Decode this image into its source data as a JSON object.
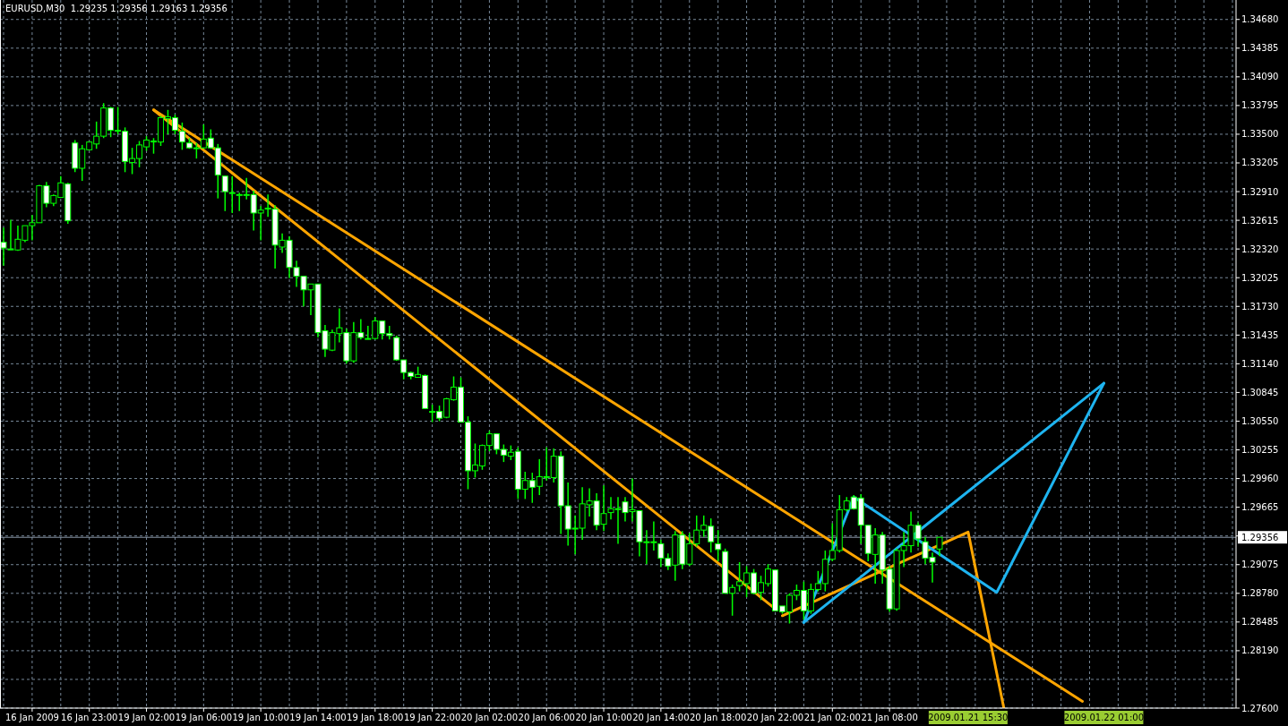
{
  "chart_data": {
    "type": "candlestick",
    "title": "EURUSD,M30  1.29235 1.29356 1.29163 1.29356",
    "color": "#00ff00",
    "grid": true,
    "categories": [
      null,
      null,
      null,
      null,
      "16 Jan 2009",
      null,
      null,
      null,
      null,
      null,
      null,
      null,
      "16 Jan 23:00",
      null,
      null,
      null,
      null,
      null,
      null,
      null,
      "19 Jan 02:00",
      null,
      null,
      null,
      null,
      null,
      null,
      null,
      "19 Jan 06:00",
      null,
      null,
      null,
      null,
      null,
      null,
      null,
      "19 Jan 10:00",
      null,
      null,
      null,
      null,
      null,
      null,
      null,
      "19 Jan 14:00",
      null,
      null,
      null,
      null,
      null,
      null,
      null,
      "19 Jan 18:00",
      null,
      null,
      null,
      null,
      null,
      null,
      null,
      "19 Jan 22:00",
      null,
      null,
      null,
      null,
      null,
      null,
      null,
      "20 Jan 02:00",
      null,
      null,
      null,
      null,
      null,
      null,
      null,
      "20 Jan 06:00",
      null,
      null,
      null,
      null,
      null,
      null,
      null,
      "20 Jan 10:00",
      null,
      null,
      null,
      null,
      null,
      null,
      null,
      "20 Jan 14:00",
      null,
      null,
      null,
      null,
      null,
      null,
      null,
      "20 Jan 18:00",
      null,
      null,
      null,
      null,
      null,
      null,
      null,
      "20 Jan 22:00",
      null,
      null,
      null,
      null,
      null,
      null,
      null,
      "21 Jan 02:00",
      null,
      null,
      null,
      null,
      null,
      null,
      null,
      "21 Jan 08:00",
      null,
      null,
      null,
      null,
      null,
      null,
      null,
      null,
      null,
      null,
      "2009.01.21 15:30",
      null,
      null,
      null,
      null,
      null,
      null,
      null,
      null,
      null,
      null,
      null,
      null,
      null,
      null,
      null,
      null,
      null,
      null,
      "2009.01.22 01:00",
      null,
      null,
      null,
      null,
      null,
      null,
      null,
      null,
      null,
      null,
      null,
      null,
      null,
      null,
      null,
      null,
      null,
      null
    ],
    "ohlc": [
      [
        1.3239,
        1.3254,
        1.3215,
        1.3233
      ],
      [
        1.3232,
        1.3262,
        1.3231,
        1.3232
      ],
      [
        1.3231,
        1.3256,
        1.323,
        1.3242
      ],
      [
        1.3241,
        1.3256,
        1.3239,
        1.3256
      ],
      [
        1.3256,
        1.3267,
        1.3241,
        1.3259
      ],
      [
        1.3259,
        1.3298,
        1.3259,
        1.3297
      ],
      [
        1.3297,
        1.3301,
        1.3275,
        1.3279
      ],
      [
        1.3279,
        1.3288,
        1.3276,
        1.3287
      ],
      [
        1.3285,
        1.3307,
        1.3285,
        1.33
      ],
      [
        1.3299,
        1.33,
        1.3258,
        1.3261
      ],
      [
        1.3341,
        1.3344,
        1.3311,
        1.3315
      ],
      [
        1.3315,
        1.3339,
        1.3302,
        1.3335
      ],
      [
        1.3334,
        1.3342,
        1.3334,
        1.3342
      ],
      [
        1.334,
        1.3363,
        1.3335,
        1.3348
      ],
      [
        1.3348,
        1.3382,
        1.3346,
        1.3377
      ],
      [
        1.3377,
        1.3378,
        1.3347,
        1.3354
      ],
      [
        1.3354,
        1.3378,
        1.335,
        1.3354
      ],
      [
        1.3353,
        1.3357,
        1.3311,
        1.3322
      ],
      [
        1.3321,
        1.3336,
        1.3309,
        1.3325
      ],
      [
        1.3325,
        1.3343,
        1.3316,
        1.3339
      ],
      [
        1.3337,
        1.3348,
        1.3333,
        1.3344
      ],
      [
        1.3343,
        1.3346,
        1.333,
        1.3343
      ],
      [
        1.3342,
        1.3369,
        1.3338,
        1.3367
      ],
      [
        1.3366,
        1.3375,
        1.335,
        1.3368
      ],
      [
        1.3367,
        1.337,
        1.335,
        1.3354
      ],
      [
        1.3353,
        1.3362,
        1.3334,
        1.3342
      ],
      [
        1.3341,
        1.3346,
        1.3335,
        1.3336
      ],
      [
        1.3336,
        1.3341,
        1.3325,
        1.3336
      ],
      [
        1.3336,
        1.336,
        1.3335,
        1.3345
      ],
      [
        1.3346,
        1.3355,
        1.3335,
        1.3336
      ],
      [
        1.3336,
        1.334,
        1.3284,
        1.3308
      ],
      [
        1.3307,
        1.3307,
        1.3271,
        1.3291
      ],
      [
        1.329,
        1.3307,
        1.3269,
        1.329
      ],
      [
        1.3288,
        1.329,
        1.3271,
        1.3288
      ],
      [
        1.3288,
        1.3305,
        1.3283,
        1.3288
      ],
      [
        1.3288,
        1.3292,
        1.3251,
        1.3269
      ],
      [
        1.3269,
        1.3276,
        1.3241,
        1.3272
      ],
      [
        1.3274,
        1.3288,
        1.3265,
        1.3274
      ],
      [
        1.3273,
        1.3277,
        1.3212,
        1.3236
      ],
      [
        1.3234,
        1.3248,
        1.3228,
        1.3241
      ],
      [
        1.3241,
        1.3245,
        1.3202,
        1.3213
      ],
      [
        1.3213,
        1.322,
        1.3193,
        1.3204
      ],
      [
        1.3204,
        1.3204,
        1.3173,
        1.319
      ],
      [
        1.319,
        1.3196,
        1.3164,
        1.3196
      ],
      [
        1.3196,
        1.3196,
        1.3141,
        1.3146
      ],
      [
        1.3148,
        1.3154,
        1.3121,
        1.3129
      ],
      [
        1.3128,
        1.3149,
        1.3127,
        1.3146
      ],
      [
        1.3145,
        1.3171,
        1.3136,
        1.3151
      ],
      [
        1.3146,
        1.315,
        1.3114,
        1.3117
      ],
      [
        1.3117,
        1.3157,
        1.3115,
        1.3146
      ],
      [
        1.3146,
        1.316,
        1.3139,
        1.3141
      ],
      [
        1.314,
        1.3153,
        1.3139,
        1.314
      ],
      [
        1.314,
        1.3162,
        1.3139,
        1.3158
      ],
      [
        1.3158,
        1.3158,
        1.3139,
        1.3145
      ],
      [
        1.3145,
        1.3153,
        1.3139,
        1.3143
      ],
      [
        1.3141,
        1.3143,
        1.3117,
        1.3118
      ],
      [
        1.3118,
        1.3118,
        1.3098,
        1.3105
      ],
      [
        1.3105,
        1.3106,
        1.3098,
        1.3101
      ],
      [
        1.31,
        1.3111,
        1.31,
        1.3103
      ],
      [
        1.3102,
        1.3103,
        1.3068,
        1.3068
      ],
      [
        1.3065,
        1.3072,
        1.3054,
        1.3065
      ],
      [
        1.3065,
        1.3071,
        1.3055,
        1.3058
      ],
      [
        1.3059,
        1.3079,
        1.3058,
        1.3078
      ],
      [
        1.3077,
        1.3101,
        1.3076,
        1.309
      ],
      [
        1.309,
        1.31,
        1.3054,
        1.3054
      ],
      [
        1.3054,
        1.306,
        1.2985,
        1.3004
      ],
      [
        1.3004,
        1.3032,
        1.2997,
        1.301
      ],
      [
        1.3009,
        1.3031,
        1.3005,
        1.303
      ],
      [
        1.303,
        1.3045,
        1.3024,
        1.3042
      ],
      [
        1.3042,
        1.3042,
        1.3021,
        1.3026
      ],
      [
        1.3026,
        1.3031,
        1.3013,
        1.302
      ],
      [
        1.3019,
        1.303,
        1.3015,
        1.3023
      ],
      [
        1.3024,
        1.3028,
        1.2975,
        1.2985
      ],
      [
        1.2985,
        1.3003,
        1.2975,
        1.2994
      ],
      [
        1.2994,
        1.3002,
        1.2971,
        1.2987
      ],
      [
        1.2988,
        1.3016,
        1.2979,
        1.2998
      ],
      [
        1.2998,
        1.3028,
        1.2994,
        1.2998
      ],
      [
        1.2997,
        1.3027,
        1.2992,
        1.3019
      ],
      [
        1.3019,
        1.3024,
        1.2939,
        1.2968
      ],
      [
        1.2968,
        1.2992,
        1.2927,
        1.2944
      ],
      [
        1.2945,
        1.2958,
        1.2918,
        1.2945
      ],
      [
        1.2945,
        1.2987,
        1.2933,
        1.297
      ],
      [
        1.2969,
        1.2986,
        1.2957,
        1.2973
      ],
      [
        1.2973,
        1.2981,
        1.2943,
        1.2948
      ],
      [
        1.2949,
        1.2989,
        1.2942,
        1.296
      ],
      [
        1.2961,
        1.2977,
        1.2954,
        1.2965
      ],
      [
        1.2965,
        1.2977,
        1.2929,
        1.2965
      ],
      [
        1.2972,
        1.2977,
        1.2952,
        1.2961
      ],
      [
        1.2962,
        1.2996,
        1.2952,
        1.2964
      ],
      [
        1.2963,
        1.2963,
        1.2916,
        1.2931
      ],
      [
        1.2931,
        1.2943,
        1.2908,
        1.2931
      ],
      [
        1.2931,
        1.2952,
        1.2922,
        1.2931
      ],
      [
        1.2929,
        1.2933,
        1.2905,
        1.2914
      ],
      [
        1.2914,
        1.2919,
        1.2902,
        1.2906
      ],
      [
        1.2907,
        1.2942,
        1.2891,
        1.2938
      ],
      [
        1.2938,
        1.2942,
        1.2903,
        1.2908
      ],
      [
        1.2908,
        1.294,
        1.2906,
        1.2929
      ],
      [
        1.2929,
        1.2958,
        1.2926,
        1.2943
      ],
      [
        1.2943,
        1.2958,
        1.2936,
        1.2948
      ],
      [
        1.2947,
        1.2955,
        1.292,
        1.2931
      ],
      [
        1.2929,
        1.2943,
        1.2911,
        1.2923
      ],
      [
        1.2921,
        1.2924,
        1.2878,
        1.2878
      ],
      [
        1.2878,
        1.2887,
        1.2855,
        1.2884
      ],
      [
        1.2886,
        1.291,
        1.288,
        1.289
      ],
      [
        1.2888,
        1.2906,
        1.2874,
        1.2899
      ],
      [
        1.2899,
        1.2903,
        1.2877,
        1.2878
      ],
      [
        1.2879,
        1.2896,
        1.2871,
        1.2889
      ],
      [
        1.2888,
        1.2908,
        1.2885,
        1.2903
      ],
      [
        1.2902,
        1.2902,
        1.286,
        1.286
      ],
      [
        1.2865,
        1.2865,
        1.2857,
        1.2859
      ],
      [
        1.2859,
        1.2878,
        1.2847,
        1.2876
      ],
      [
        1.2876,
        1.2887,
        1.2871,
        1.2881
      ],
      [
        1.2881,
        1.289,
        1.2851,
        1.286
      ],
      [
        1.286,
        1.2888,
        1.2857,
        1.2882
      ],
      [
        1.2882,
        1.2901,
        1.288,
        1.2888
      ],
      [
        1.2888,
        1.2922,
        1.288,
        1.2913
      ],
      [
        1.2913,
        1.295,
        1.2911,
        1.2922
      ],
      [
        1.2922,
        1.2979,
        1.292,
        1.2964
      ],
      [
        1.2964,
        1.2977,
        1.2962,
        1.2973
      ],
      [
        1.2977,
        1.2979,
        1.2964,
        1.2965
      ],
      [
        1.2976,
        1.298,
        1.2929,
        1.2948
      ],
      [
        1.2948,
        1.2948,
        1.2911,
        1.2919
      ],
      [
        1.2918,
        1.2945,
        1.2888,
        1.2938
      ],
      [
        1.2938,
        1.2941,
        1.2888,
        1.2902
      ],
      [
        1.2903,
        1.2906,
        1.2859,
        1.2862
      ],
      [
        1.2862,
        1.2924,
        1.286,
        1.2922
      ],
      [
        1.2922,
        1.2941,
        1.2905,
        1.2927
      ],
      [
        1.2927,
        1.2962,
        1.292,
        1.2948
      ],
      [
        1.2948,
        1.2951,
        1.2926,
        1.2934
      ],
      [
        1.2931,
        1.2936,
        1.2908,
        1.2914
      ],
      [
        1.2915,
        1.292,
        1.2889,
        1.291
      ],
      [
        1.29235,
        1.29356,
        1.29163,
        1.29356
      ],
      null,
      null,
      null,
      null,
      null,
      null,
      null,
      null,
      null,
      null,
      null,
      null,
      null,
      null,
      null,
      null,
      null,
      null,
      null,
      null,
      null,
      null,
      null,
      null,
      null,
      null,
      null,
      null,
      null,
      null,
      null,
      null,
      null,
      null,
      null,
      null,
      null,
      null,
      null,
      null,
      null
    ],
    "series": [
      {
        "type": "line",
        "color": "#ffa500",
        "values": [
          null,
          null,
          null,
          null,
          null,
          null,
          null,
          null,
          null,
          null,
          null,
          null,
          null,
          null,
          null,
          null,
          null,
          null,
          null,
          null,
          null,
          1.3375,
          null,
          null,
          null,
          null,
          null,
          null,
          null,
          null,
          null,
          null,
          null,
          null,
          null,
          null,
          null,
          null,
          null,
          null,
          null,
          null,
          null,
          null,
          null,
          null,
          null,
          null,
          null,
          null,
          null,
          null,
          null,
          null,
          null,
          null,
          null,
          null,
          null,
          null,
          null,
          null,
          null,
          null,
          null,
          null,
          null,
          null,
          null,
          null,
          null,
          null,
          null,
          null,
          null,
          null,
          null,
          null,
          null,
          null,
          null,
          null,
          null,
          null,
          null,
          null,
          null,
          null,
          null,
          null,
          null,
          null,
          null,
          null,
          null,
          null,
          null,
          null,
          null,
          null,
          null,
          null,
          null,
          null,
          null,
          null,
          null,
          null,
          null,
          null,
          null,
          null,
          null,
          null,
          null,
          null,
          null,
          null,
          null,
          null,
          null,
          null,
          null,
          null,
          null,
          null,
          null,
          null,
          null,
          null,
          null,
          null,
          null,
          null,
          null,
          null,
          null,
          null,
          null,
          null,
          null,
          null,
          null,
          null,
          null,
          null,
          null,
          null,
          null,
          null,
          null,
          1.2767,
          null,
          null,
          null,
          null,
          null,
          null,
          null,
          null,
          null,
          null,
          null,
          null,
          null,
          null,
          null,
          null,
          null,
          null,
          null,
          null,
          null
        ]
      },
      {
        "type": "line",
        "color": "#ffa500",
        "values": [
          null,
          null,
          null,
          null,
          null,
          null,
          null,
          null,
          null,
          null,
          null,
          null,
          null,
          null,
          null,
          null,
          null,
          null,
          null,
          null,
          null,
          1.3375,
          null,
          null,
          null,
          null,
          null,
          null,
          null,
          null,
          null,
          null,
          null,
          null,
          null,
          null,
          null,
          null,
          null,
          null,
          null,
          null,
          null,
          null,
          null,
          null,
          null,
          null,
          null,
          null,
          null,
          null,
          null,
          null,
          null,
          null,
          null,
          null,
          null,
          null,
          null,
          null,
          null,
          null,
          null,
          null,
          null,
          null,
          null,
          null,
          null,
          null,
          null,
          null,
          null,
          null,
          null,
          null,
          null,
          null,
          null,
          null,
          null,
          null,
          null,
          null,
          null,
          null,
          null,
          null,
          null,
          null,
          null,
          null,
          null,
          null,
          null,
          null,
          null,
          null,
          null,
          null,
          null,
          null,
          null,
          null,
          null,
          null,
          1.2862,
          null,
          null,
          null,
          null,
          null,
          null,
          null,
          null,
          null,
          null,
          null,
          null,
          null,
          null,
          null,
          null,
          null,
          null,
          null,
          null,
          null,
          null,
          null,
          null,
          null,
          null,
          null,
          null,
          null,
          null,
          null,
          null,
          null,
          null,
          null,
          null,
          null,
          null,
          null,
          null,
          null,
          null,
          null,
          null,
          null,
          null,
          null,
          null,
          null,
          null,
          null,
          null,
          null,
          null,
          null,
          null,
          null,
          null,
          null,
          null,
          null,
          null,
          null,
          null
        ]
      },
      {
        "type": "line",
        "color": "#ffa500",
        "values": [
          null,
          null,
          null,
          null,
          null,
          null,
          null,
          null,
          null,
          null,
          null,
          null,
          null,
          null,
          null,
          null,
          null,
          null,
          null,
          null,
          null,
          null,
          null,
          null,
          null,
          null,
          null,
          null,
          null,
          null,
          null,
          null,
          null,
          null,
          null,
          null,
          null,
          null,
          null,
          null,
          null,
          null,
          null,
          null,
          null,
          null,
          null,
          null,
          null,
          null,
          null,
          null,
          null,
          null,
          null,
          null,
          null,
          null,
          null,
          null,
          null,
          null,
          null,
          null,
          null,
          null,
          null,
          null,
          null,
          null,
          null,
          null,
          null,
          null,
          null,
          null,
          null,
          null,
          null,
          null,
          null,
          null,
          null,
          null,
          null,
          null,
          null,
          null,
          null,
          null,
          null,
          null,
          null,
          null,
          null,
          null,
          null,
          null,
          null,
          null,
          null,
          null,
          null,
          null,
          null,
          null,
          null,
          null,
          null,
          1.2855,
          null,
          null,
          null,
          null,
          null,
          null,
          null,
          null,
          null,
          null,
          null,
          null,
          null,
          null,
          null,
          null,
          null,
          null,
          null,
          null,
          null,
          null,
          null,
          null,
          null,
          1.2941,
          null,
          null,
          null,
          null,
          1.276,
          null,
          null,
          null,
          null,
          null,
          null,
          null,
          null,
          null,
          null,
          null,
          null,
          null,
          null,
          null,
          null,
          null,
          null,
          null,
          null,
          null,
          null,
          null,
          null,
          null,
          null,
          null,
          null,
          null,
          null,
          null,
          null
        ]
      },
      {
        "type": "line",
        "color": "#1eb4f0",
        "values": [
          null,
          null,
          null,
          null,
          null,
          null,
          null,
          null,
          null,
          null,
          null,
          null,
          null,
          null,
          null,
          null,
          null,
          null,
          null,
          null,
          null,
          null,
          null,
          null,
          null,
          null,
          null,
          null,
          null,
          null,
          null,
          null,
          null,
          null,
          null,
          null,
          null,
          null,
          null,
          null,
          null,
          null,
          null,
          null,
          null,
          null,
          null,
          null,
          null,
          null,
          null,
          null,
          null,
          null,
          null,
          null,
          null,
          null,
          null,
          null,
          null,
          null,
          null,
          null,
          null,
          null,
          null,
          null,
          null,
          null,
          null,
          null,
          null,
          null,
          null,
          null,
          null,
          null,
          null,
          null,
          null,
          null,
          null,
          null,
          null,
          null,
          null,
          null,
          null,
          null,
          null,
          null,
          null,
          null,
          null,
          null,
          null,
          null,
          null,
          null,
          null,
          null,
          null,
          null,
          null,
          null,
          null,
          null,
          null,
          null,
          null,
          null,
          1.2848,
          null,
          null,
          null,
          null,
          null,
          null,
          1.2977,
          null,
          null,
          null,
          null,
          null,
          null,
          null,
          null,
          null,
          null,
          null,
          null,
          null,
          null,
          null,
          null,
          null,
          null,
          null,
          1.2879,
          null,
          null,
          null,
          null,
          null,
          null,
          null,
          null,
          null,
          null,
          null,
          null,
          null,
          null,
          1.3094,
          null,
          null,
          null,
          null,
          null,
          null,
          null,
          null,
          null,
          null,
          null,
          null,
          null,
          null,
          null,
          null,
          null,
          null
        ]
      },
      {
        "type": "line",
        "color": "#1eb4f0",
        "values": [
          null,
          null,
          null,
          null,
          null,
          null,
          null,
          null,
          null,
          null,
          null,
          null,
          null,
          null,
          null,
          null,
          null,
          null,
          null,
          null,
          null,
          null,
          null,
          null,
          null,
          null,
          null,
          null,
          null,
          null,
          null,
          null,
          null,
          null,
          null,
          null,
          null,
          null,
          null,
          null,
          null,
          null,
          null,
          null,
          null,
          null,
          null,
          null,
          null,
          null,
          null,
          null,
          null,
          null,
          null,
          null,
          null,
          null,
          null,
          null,
          null,
          null,
          null,
          null,
          null,
          null,
          null,
          null,
          null,
          null,
          null,
          null,
          null,
          null,
          null,
          null,
          null,
          null,
          null,
          null,
          null,
          null,
          null,
          null,
          null,
          null,
          null,
          null,
          null,
          null,
          null,
          null,
          null,
          null,
          null,
          null,
          null,
          null,
          null,
          null,
          null,
          null,
          null,
          null,
          null,
          null,
          null,
          null,
          null,
          null,
          null,
          null,
          1.2848,
          null,
          null,
          null,
          null,
          null,
          null,
          null,
          null,
          null,
          null,
          null,
          null,
          null,
          null,
          null,
          null,
          null,
          null,
          null,
          null,
          null,
          null,
          null,
          null,
          null,
          null,
          null,
          null,
          null,
          null,
          null,
          null,
          null,
          null,
          null,
          null,
          null,
          null,
          null,
          null,
          null,
          1.3094,
          null,
          null,
          null,
          null,
          null,
          null,
          null,
          null,
          null,
          null,
          null,
          null,
          null,
          null,
          null,
          null,
          null,
          null
        ]
      }
    ],
    "ylim": [
      1.276,
      1.3488
    ],
    "yticks": [
      {
        "value": 1.276,
        "label": "1.27600"
      },
      {
        "value": 1.27895,
        "label": null
      },
      {
        "value": 1.2819,
        "label": "1.28190"
      },
      {
        "value": 1.28485,
        "label": "1.28485"
      },
      {
        "value": 1.2878,
        "label": "1.28780"
      },
      {
        "value": 1.29075,
        "label": "1.29075"
      },
      {
        "value": 1.2937,
        "label": null
      },
      {
        "value": 1.29665,
        "label": "1.29665"
      },
      {
        "value": 1.2996,
        "label": "1.29960"
      },
      {
        "value": 1.30255,
        "label": "1.30255"
      },
      {
        "value": 1.3055,
        "label": "1.30550"
      },
      {
        "value": 1.30845,
        "label": "1.30845"
      },
      {
        "value": 1.3114,
        "label": "1.31140"
      },
      {
        "value": 1.31435,
        "label": "1.31435"
      },
      {
        "value": 1.3173,
        "label": "1.31730"
      },
      {
        "value": 1.32025,
        "label": "1.32025"
      },
      {
        "value": 1.3232,
        "label": "1.32320"
      },
      {
        "value": 1.32615,
        "label": "1.32615"
      },
      {
        "value": 1.3291,
        "label": "1.32910"
      },
      {
        "value": 1.33205,
        "label": "1.33205"
      },
      {
        "value": 1.335,
        "label": "1.33500"
      },
      {
        "value": 1.33795,
        "label": "1.33795"
      },
      {
        "value": 1.3409,
        "label": "1.34090"
      },
      {
        "value": 1.34385,
        "label": "1.34385"
      },
      {
        "value": 1.3468,
        "label": "1.34680"
      }
    ],
    "ref_lines": [
      {
        "axis": "y",
        "value": 1.29356,
        "label": "1.29356",
        "color": "#8a96a8"
      }
    ]
  }
}
